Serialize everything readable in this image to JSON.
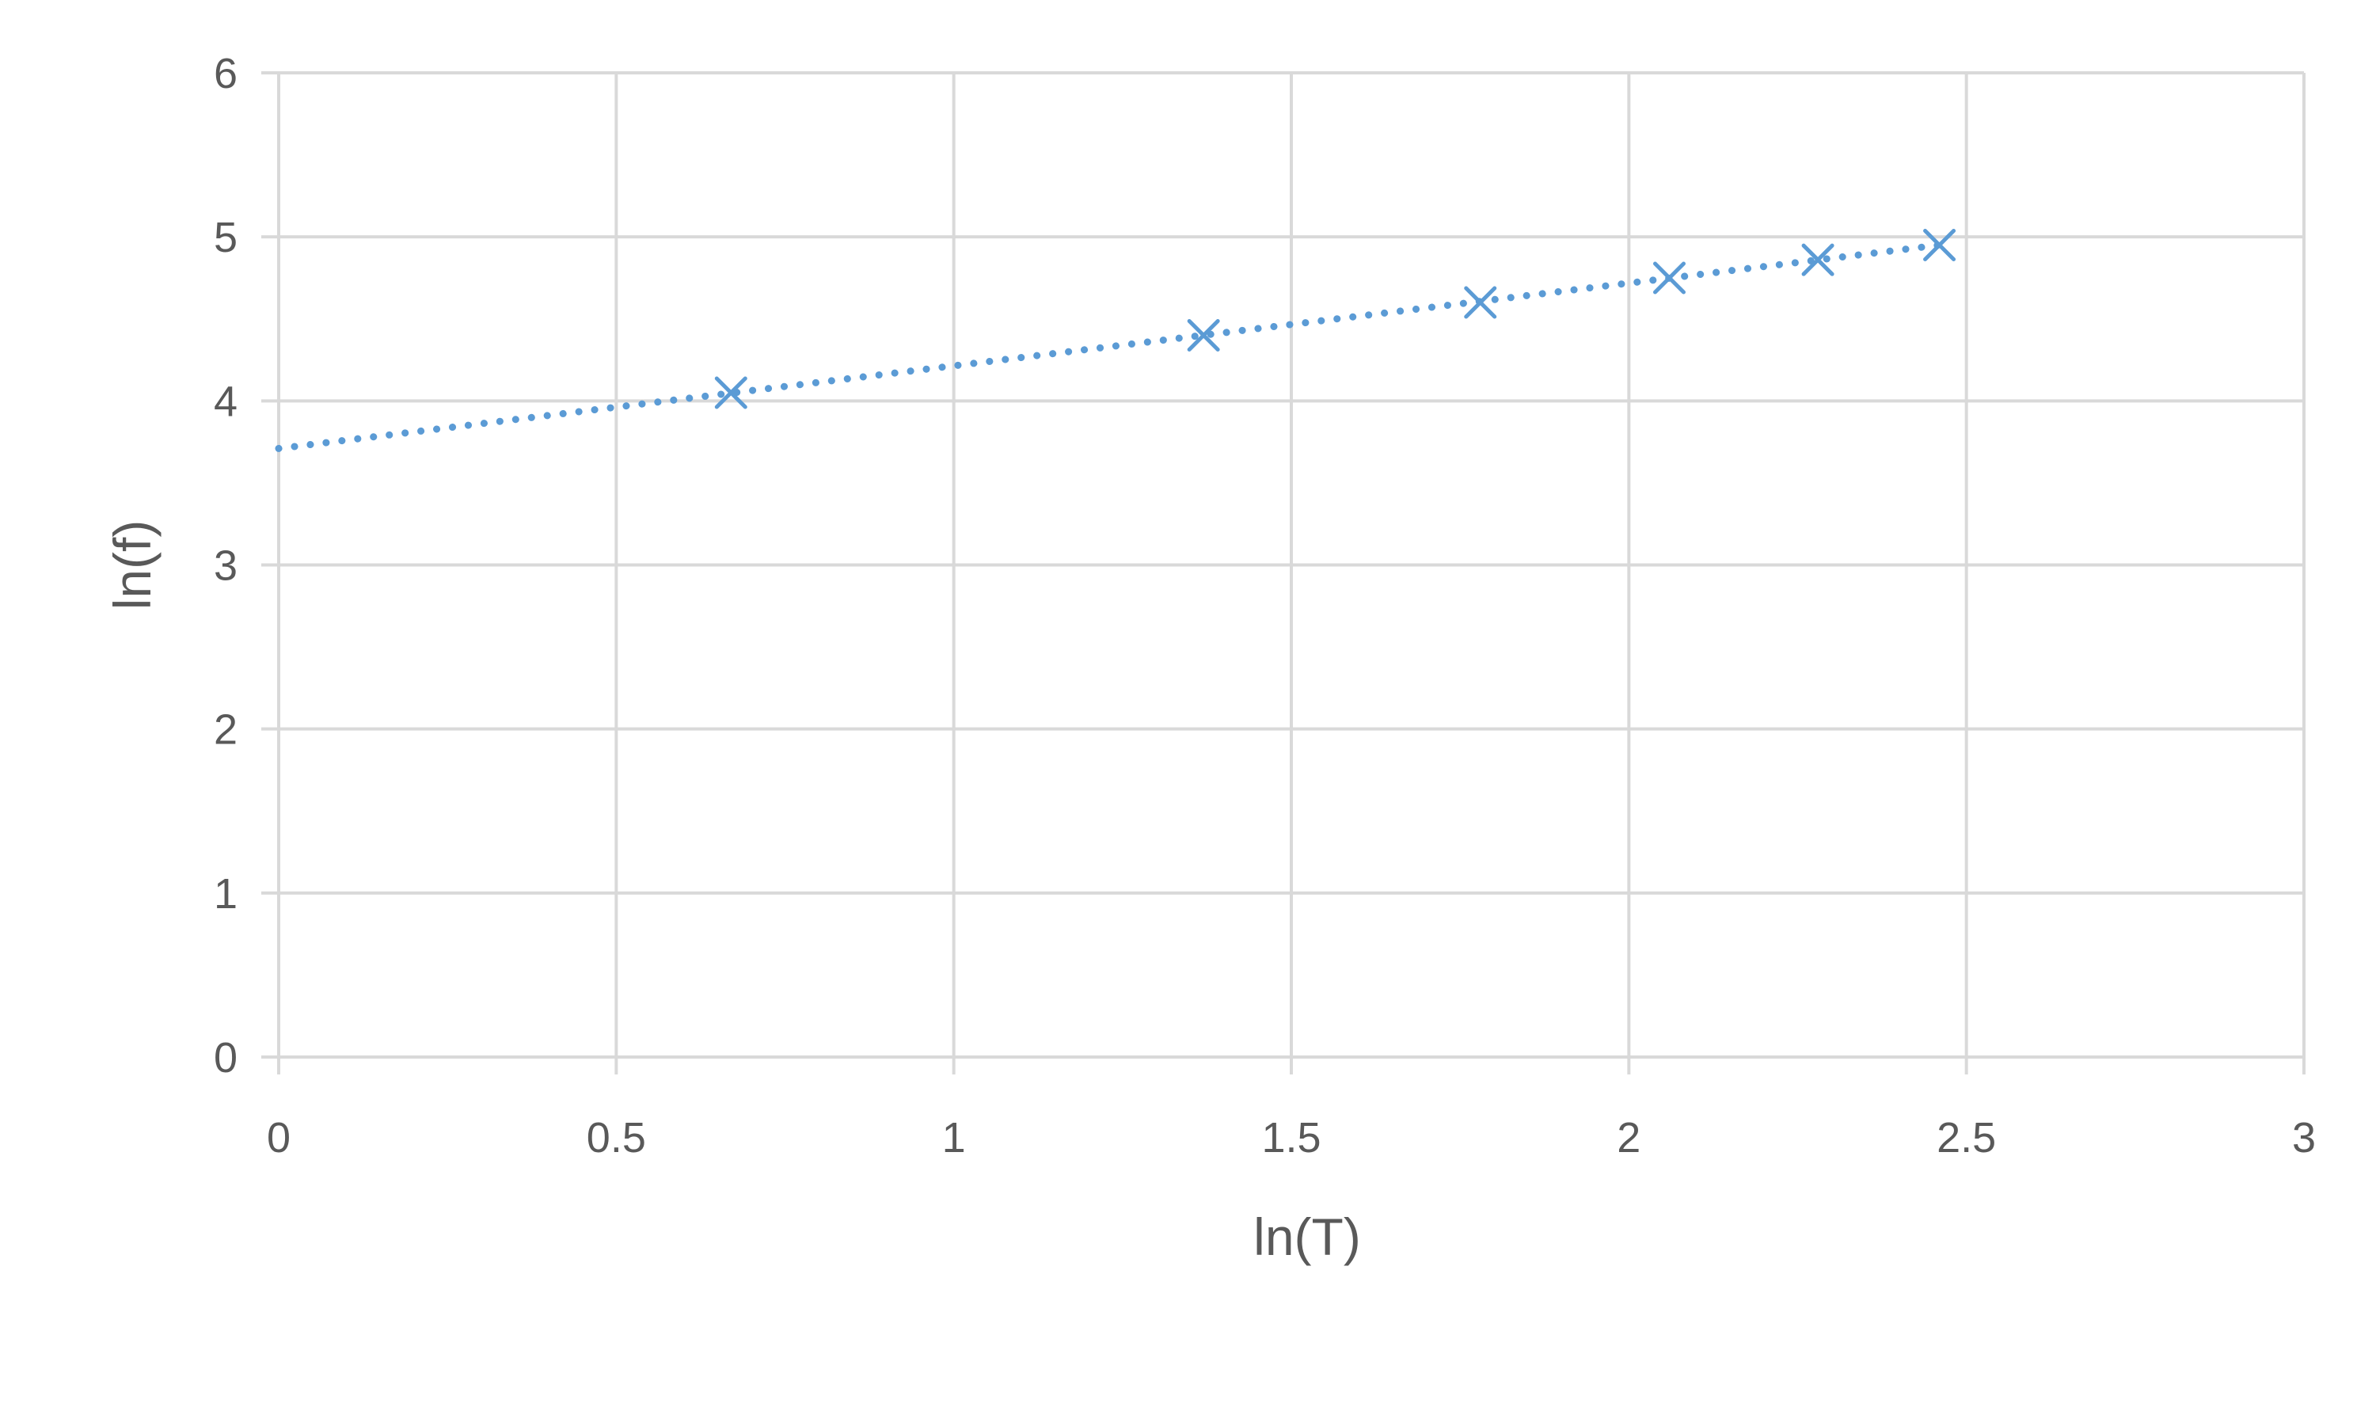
{
  "chart_data": {
    "type": "scatter",
    "xlabel": "ln(T)",
    "ylabel": "ln(f)",
    "xlim": [
      0,
      3
    ],
    "ylim": [
      0,
      6
    ],
    "x_ticks": [
      "0",
      "0.5",
      "1",
      "1.5",
      "2",
      "2.5",
      "3"
    ],
    "y_ticks": [
      "0",
      "1",
      "2",
      "3",
      "4",
      "5",
      "6"
    ],
    "grid": true,
    "legend": "none",
    "series": [
      {
        "marker": "x",
        "color": "#5b9bd5",
        "x": [
          0.67,
          1.37,
          1.78,
          2.06,
          2.28,
          2.46
        ],
        "y": [
          4.05,
          4.4,
          4.6,
          4.75,
          4.86,
          4.95
        ]
      }
    ],
    "trendline": {
      "style": "dotted",
      "color": "#5b9bd5",
      "x": [
        0,
        2.46
      ],
      "y": [
        3.71,
        4.95
      ]
    }
  }
}
